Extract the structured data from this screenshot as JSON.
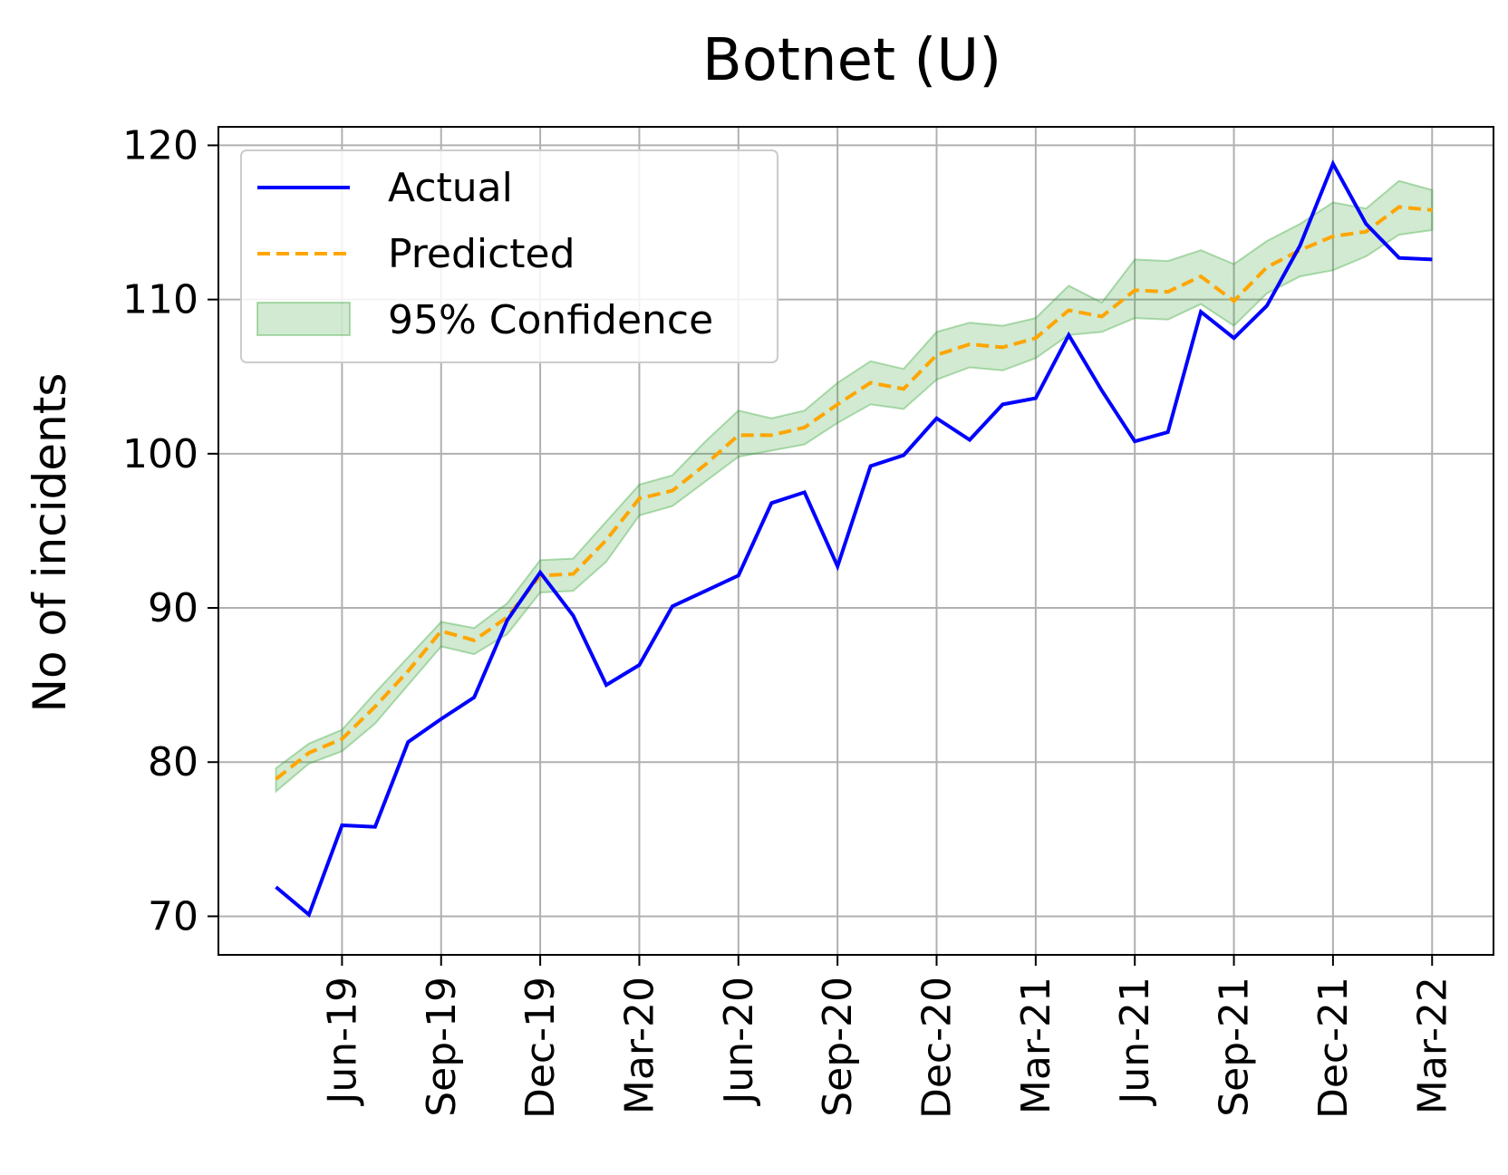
{
  "chart_data": {
    "type": "line",
    "title": "Botnet (U)",
    "xlabel": "",
    "ylabel": "No of incidents",
    "grid": true,
    "legend_position": "top-left",
    "ylim": [
      67.5,
      121.2
    ],
    "x_ticks": [
      "Jun-19",
      "Sep-19",
      "Dec-19",
      "Mar-20",
      "Jun-20",
      "Sep-20",
      "Dec-20",
      "Mar-21",
      "Jun-21",
      "Sep-21",
      "Dec-21",
      "Mar-22"
    ],
    "y_ticks": [
      70,
      80,
      90,
      100,
      110,
      120
    ],
    "x": [
      "Apr-19",
      "May-19",
      "Jun-19",
      "Jul-19",
      "Aug-19",
      "Sep-19",
      "Oct-19",
      "Nov-19",
      "Dec-19",
      "Jan-20",
      "Feb-20",
      "Mar-20",
      "Apr-20",
      "May-20",
      "Jun-20",
      "Jul-20",
      "Aug-20",
      "Sep-20",
      "Oct-20",
      "Nov-20",
      "Dec-20",
      "Jan-21",
      "Feb-21",
      "Mar-21",
      "Apr-21",
      "May-21",
      "Jun-21",
      "Jul-21",
      "Aug-21",
      "Sep-21",
      "Oct-21",
      "Nov-21",
      "Dec-21",
      "Jan-22",
      "Feb-22",
      "Mar-22"
    ],
    "series": [
      {
        "name": "Actual",
        "color": "#0000ff",
        "style": "solid",
        "values": [
          71.9,
          70.1,
          75.9,
          75.8,
          81.3,
          82.8,
          84.2,
          89.2,
          92.3,
          89.5,
          85.0,
          86.3,
          90.1,
          91.1,
          92.1,
          96.8,
          97.5,
          92.7,
          99.2,
          99.9,
          102.3,
          100.9,
          103.2,
          103.6,
          107.7,
          104.1,
          100.8,
          101.4,
          109.2,
          107.5,
          109.6,
          113.5,
          118.8,
          114.9,
          112.7,
          112.6
        ]
      },
      {
        "name": "Predicted",
        "color": "#ffa500",
        "style": "dashed",
        "values": [
          78.9,
          80.6,
          81.5,
          83.6,
          85.9,
          88.5,
          87.9,
          89.4,
          92.1,
          92.2,
          94.4,
          97.1,
          97.6,
          99.3,
          101.2,
          101.2,
          101.7,
          103.2,
          104.6,
          104.2,
          106.4,
          107.1,
          106.9,
          107.5,
          109.3,
          108.9,
          110.6,
          110.5,
          111.5,
          109.9,
          112.1,
          113.2,
          114.1,
          114.4,
          116.0,
          115.8
        ]
      }
    ],
    "band": {
      "name": "95% Confidence",
      "color": "#2ca02c",
      "lower": [
        78.1,
        79.9,
        80.7,
        82.5,
        85.0,
        87.5,
        87.0,
        88.3,
        91.0,
        91.1,
        93.0,
        96.0,
        96.6,
        98.2,
        99.8,
        100.2,
        100.6,
        102.0,
        103.2,
        102.9,
        104.8,
        105.6,
        105.4,
        106.2,
        107.7,
        107.9,
        108.8,
        108.7,
        109.7,
        108.3,
        110.4,
        111.5,
        111.9,
        112.8,
        114.2,
        114.5
      ],
      "upper": [
        79.6,
        81.2,
        82.1,
        84.5,
        86.8,
        89.1,
        88.7,
        90.3,
        93.1,
        93.2,
        95.6,
        98.0,
        98.6,
        100.8,
        102.8,
        102.3,
        102.8,
        104.6,
        106.0,
        105.5,
        107.9,
        108.5,
        108.3,
        108.8,
        110.9,
        109.8,
        112.6,
        112.5,
        113.2,
        112.3,
        113.8,
        114.9,
        116.3,
        115.9,
        117.7,
        117.1
      ]
    }
  }
}
